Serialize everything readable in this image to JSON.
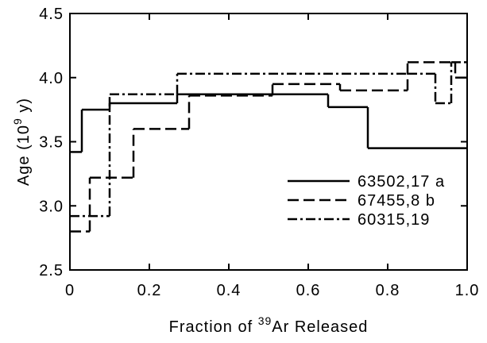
{
  "chart_data": {
    "type": "step",
    "xlabel": {
      "before": "Fraction of ",
      "sup": "39",
      "after": "Ar Released"
    },
    "ylabel": {
      "before": "Age (10",
      "sup": "9",
      "after": " y)"
    },
    "xlim": [
      0,
      1.0
    ],
    "ylim": [
      2.5,
      4.5
    ],
    "xticks": [
      0,
      0.2,
      0.4,
      0.6,
      0.8,
      {
        "value": 1.0,
        "label": "1.0"
      }
    ],
    "yticks": [
      2.5,
      {
        "value": 3.0,
        "label": "3.0"
      },
      3.5,
      {
        "value": 4.0,
        "label": "4.0"
      },
      4.5
    ],
    "legend": "lower right",
    "series": [
      {
        "name": "63502,17 a",
        "color": "#000000",
        "dash": "solid",
        "bins": [
          0,
          0.03,
          0.1,
          0.27,
          0.65,
          0.75,
          1.0
        ],
        "values": [
          3.42,
          3.75,
          3.8,
          3.87,
          3.77,
          3.45
        ]
      },
      {
        "name": "67455,8 b",
        "color": "#000000",
        "dash": "dashed",
        "bins": [
          0,
          0.05,
          0.16,
          0.3,
          0.51,
          0.68,
          0.85,
          0.97,
          1.0
        ],
        "values": [
          2.8,
          3.22,
          3.6,
          3.86,
          3.95,
          3.9,
          4.12,
          4.0
        ]
      },
      {
        "name": "60315,19",
        "color": "#000000",
        "dash": "dashdot",
        "bins": [
          0,
          0.1,
          0.27,
          0.85,
          0.92,
          0.96,
          1.0
        ],
        "values": [
          2.92,
          3.87,
          4.03,
          4.03,
          3.8,
          4.12
        ]
      }
    ]
  }
}
